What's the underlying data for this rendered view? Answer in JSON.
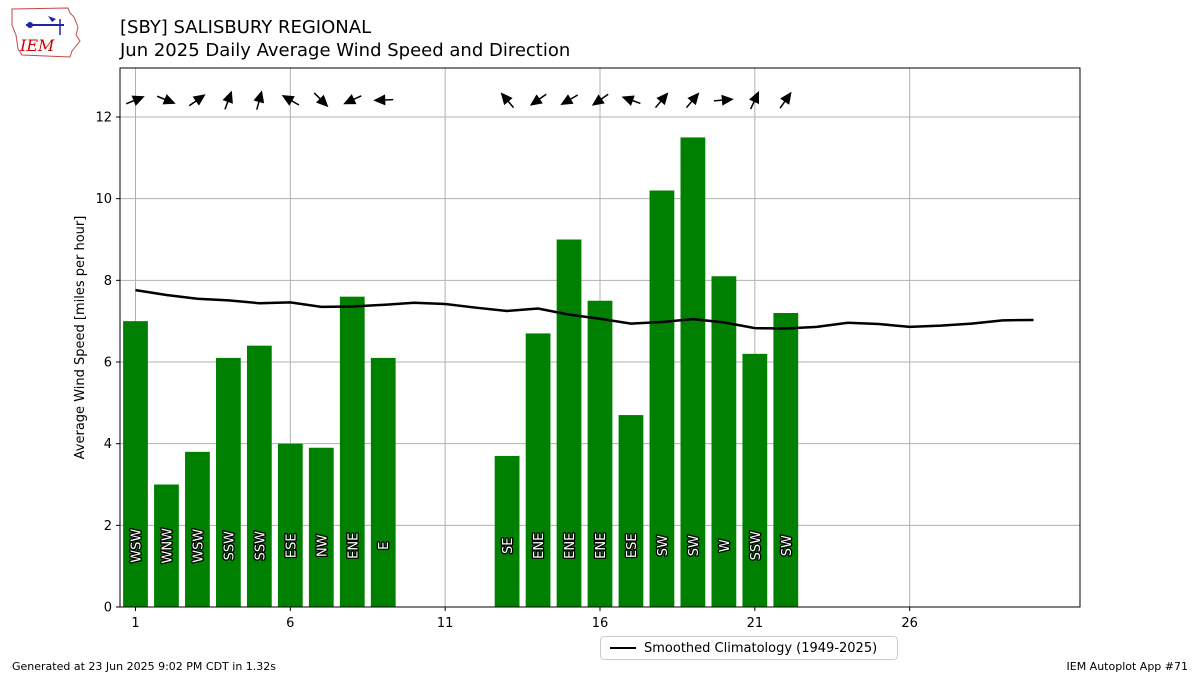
{
  "header": {
    "logo_text": "IEM",
    "title_line1": "[SBY] SALISBURY REGIONAL",
    "title_line2": "Jun 2025 Daily Average Wind Speed and Direction"
  },
  "footer": {
    "generated": "Generated at 23 Jun 2025 9:02 PM CDT in 1.32s",
    "app": "IEM Autoplot App #71"
  },
  "colors": {
    "bar": "#008000",
    "line": "#000000",
    "grid": "#b0b0b0",
    "logo": "#cc0000"
  },
  "chart_data": {
    "type": "bar",
    "ylabel": "Average Wind Speed [miles per hour]",
    "xlim": [
      0.5,
      31.5
    ],
    "ylim": [
      0,
      13.2
    ],
    "xticks": [
      1,
      6,
      11,
      16,
      21,
      26
    ],
    "yticks": [
      0,
      2,
      4,
      6,
      8,
      10,
      12
    ],
    "grid": true,
    "legend_position": "bottom-center",
    "bars": [
      {
        "day": 1,
        "speed": 7.0,
        "dir": "WSW",
        "deg": 248
      },
      {
        "day": 2,
        "speed": 3.0,
        "dir": "WNW",
        "deg": 292
      },
      {
        "day": 3,
        "speed": 3.8,
        "dir": "WSW",
        "deg": 235
      },
      {
        "day": 4,
        "speed": 6.1,
        "dir": "SSW",
        "deg": 200
      },
      {
        "day": 5,
        "speed": 6.4,
        "dir": "SSW",
        "deg": 195
      },
      {
        "day": 6,
        "speed": 4.0,
        "dir": "ESE",
        "deg": 120
      },
      {
        "day": 7,
        "speed": 3.9,
        "dir": "NW",
        "deg": 315
      },
      {
        "day": 8,
        "speed": 7.6,
        "dir": "ENE",
        "deg": 65
      },
      {
        "day": 9,
        "speed": 6.1,
        "dir": "E",
        "deg": 88
      },
      {
        "day": 13,
        "speed": 3.7,
        "dir": "SE",
        "deg": 140
      },
      {
        "day": 14,
        "speed": 6.7,
        "dir": "ENE",
        "deg": 55
      },
      {
        "day": 15,
        "speed": 9.0,
        "dir": "ENE",
        "deg": 60
      },
      {
        "day": 16,
        "speed": 7.5,
        "dir": "ENE",
        "deg": 55
      },
      {
        "day": 17,
        "speed": 4.7,
        "dir": "ESE",
        "deg": 110
      },
      {
        "day": 18,
        "speed": 10.2,
        "dir": "SW",
        "deg": 220
      },
      {
        "day": 19,
        "speed": 11.5,
        "dir": "SW",
        "deg": 220
      },
      {
        "day": 20,
        "speed": 8.1,
        "dir": "W",
        "deg": 265
      },
      {
        "day": 21,
        "speed": 6.2,
        "dir": "SSW",
        "deg": 205
      },
      {
        "day": 22,
        "speed": 7.2,
        "dir": "SW",
        "deg": 215
      }
    ],
    "series": [
      {
        "name": "Smoothed Climatology (1949-2025)",
        "x": [
          1,
          2,
          3,
          4,
          5,
          6,
          7,
          8,
          9,
          10,
          11,
          12,
          13,
          14,
          15,
          16,
          17,
          18,
          19,
          20,
          21,
          22,
          23,
          24,
          25,
          26,
          27,
          28,
          29,
          30
        ],
        "values": [
          7.76,
          7.64,
          7.55,
          7.51,
          7.44,
          7.46,
          7.35,
          7.36,
          7.4,
          7.45,
          7.42,
          7.33,
          7.25,
          7.31,
          7.16,
          7.06,
          6.94,
          6.98,
          7.05,
          6.97,
          6.83,
          6.82,
          6.86,
          6.96,
          6.93,
          6.86,
          6.89,
          6.94,
          7.02,
          7.03
        ]
      }
    ]
  }
}
